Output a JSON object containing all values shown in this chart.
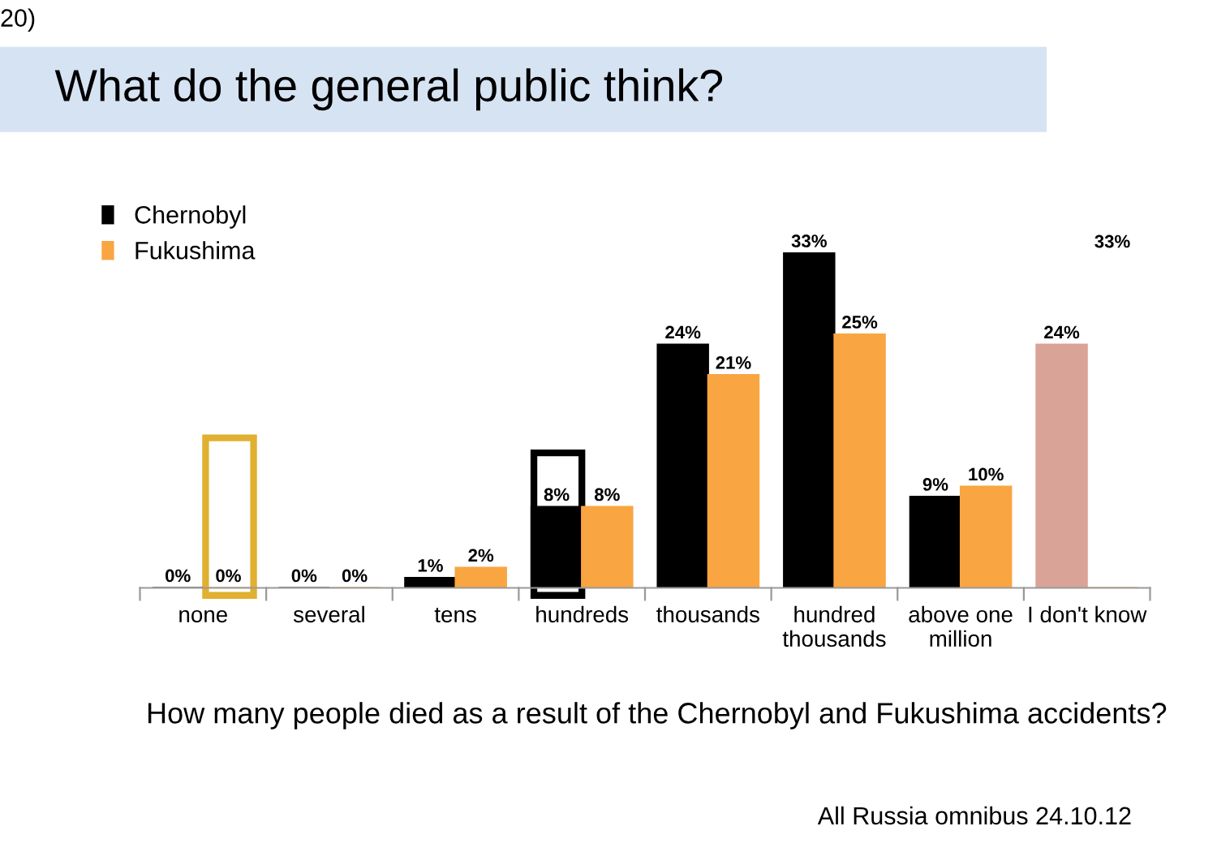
{
  "chart_data": {
    "type": "bar",
    "title": "What do the general public think?",
    "categories": [
      "none",
      "several",
      "tens",
      "hundreds",
      "thousands",
      "hundred\nthousands",
      "above one\nmillion",
      "I don't know"
    ],
    "series": [
      {
        "name": "Chernobyl",
        "color": "#000000",
        "colors": [
          "#000000",
          "#000000",
          "#000000",
          "#000000",
          "#000000",
          "#000000",
          "#000000",
          "#d9a397"
        ],
        "values": [
          0,
          0,
          1,
          8,
          24,
          33,
          9,
          24
        ],
        "value_labels": [
          "0%",
          "0%",
          "1%",
          "8%",
          "24%",
          "33%",
          "9%",
          "24%"
        ]
      },
      {
        "name": "Fukushima",
        "color": "#f9a541",
        "colors": [
          "#f9a541",
          "#f9a541",
          "#f9a541",
          "#f9a541",
          "#f9a541",
          "#f9a541",
          "#f9a541",
          "#f9a541"
        ],
        "values": [
          0,
          0,
          2,
          8,
          21,
          25,
          10,
          null
        ],
        "value_labels": [
          "0%",
          "0%",
          "2%",
          "8%",
          "21%",
          "25%",
          "10%",
          null
        ]
      }
    ],
    "legend": "top left",
    "grid": false,
    "annotations": [
      "33%",
      "20)",
      "How many people died as a result of the Chernobyl and Fukushima accidents?",
      "All Russia omnibus 24.10.12"
    ]
  }
}
